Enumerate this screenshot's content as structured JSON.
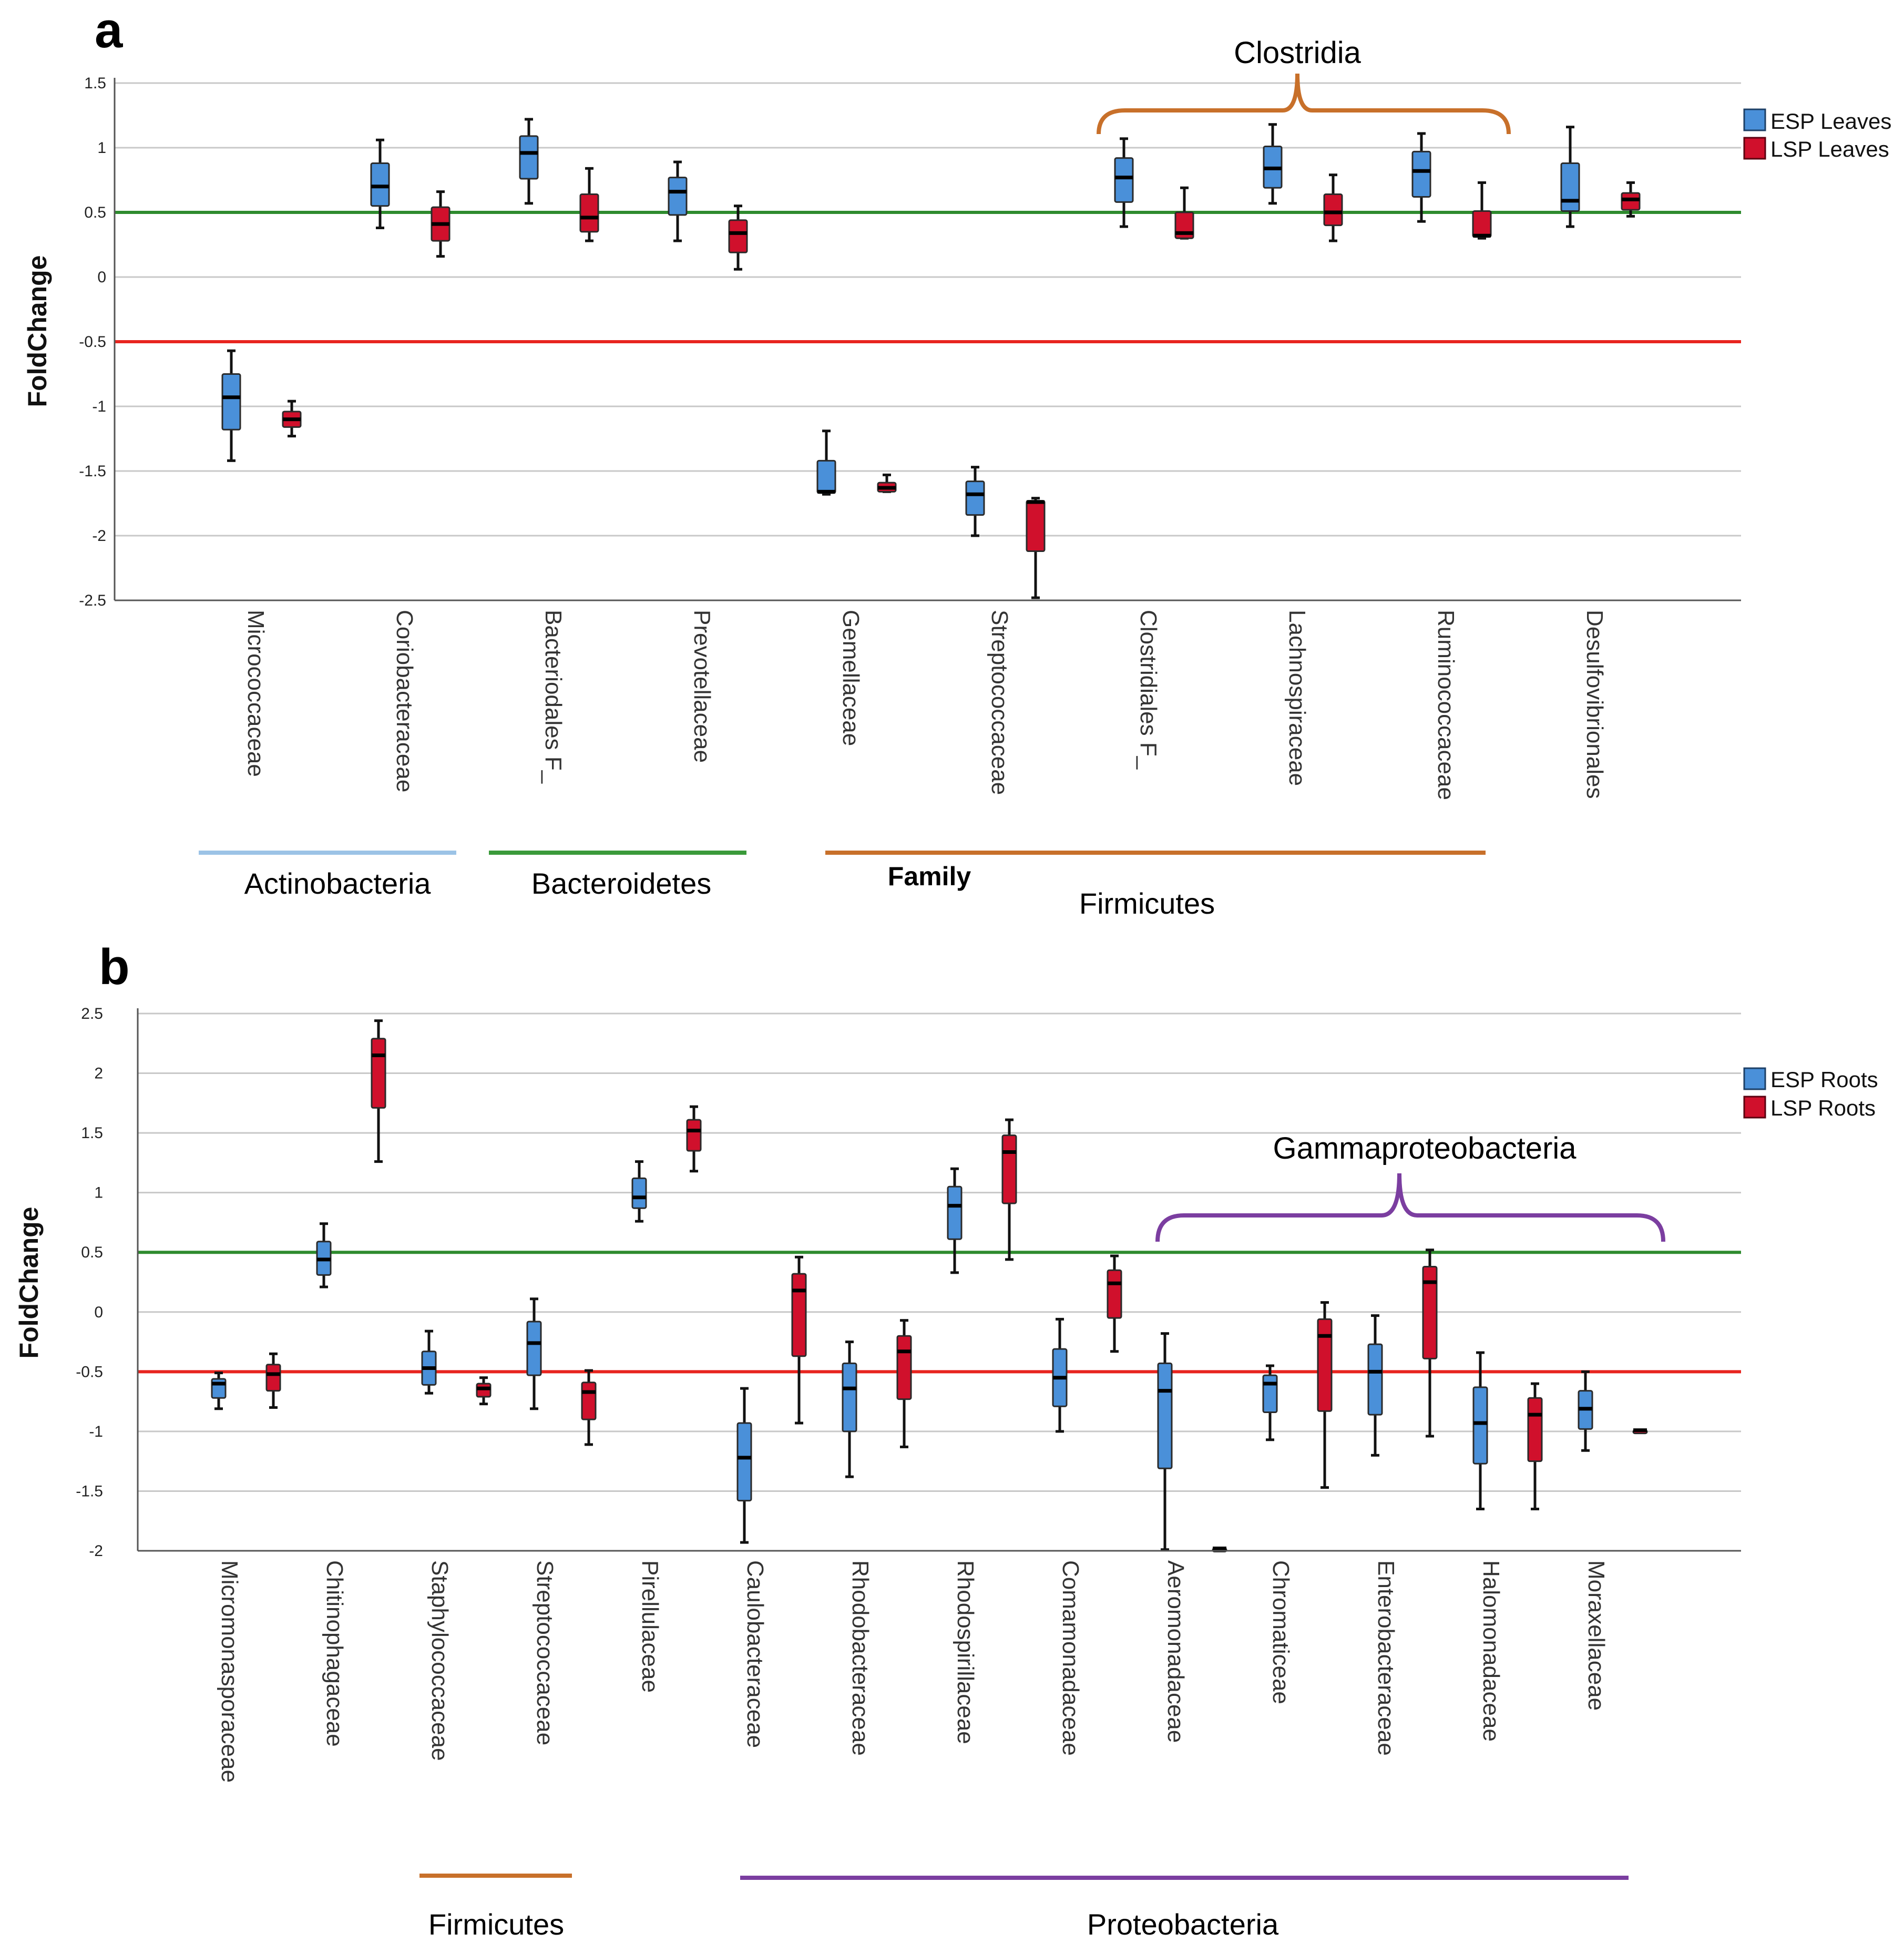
{
  "chart_data": [
    {
      "panel_label": "a",
      "type": "box",
      "ylabel": "FoldChange",
      "ylim": [
        -2.7,
        1.7
      ],
      "yticks": [
        1.5,
        1,
        0.5,
        0,
        -0.5,
        -1,
        -1.5,
        -2,
        -2.5
      ],
      "ytick_labels": [
        "1.5",
        "1",
        "0.5",
        "0",
        "-0.5",
        "-1",
        "-1.5",
        "-2",
        "-2.5"
      ],
      "reference_lines": [
        {
          "y": 0.5,
          "color": "#2e8b2e"
        },
        {
          "y": -0.5,
          "color": "#e8251f"
        }
      ],
      "legend": [
        {
          "label": "ESP Leaves",
          "color": "#4a90d9"
        },
        {
          "label": "LSP Leaves",
          "color": "#d0102c"
        }
      ],
      "categories": [
        "Micrococcaceae",
        "Coriobacteraceae",
        "Bacteriodales F_",
        "Prevotellaceae",
        "Gemellaceae",
        "Streptococcaceae",
        "Clostridiales F_",
        "Lachnospiraceae",
        "Ruminococcaceae",
        "Desulfovibrionales"
      ],
      "series": [
        {
          "name": "ESP Leaves",
          "color": "#4a90d9",
          "boxes": [
            {
              "min": -1.42,
              "q1": -1.18,
              "median": -0.93,
              "q3": -0.75,
              "max": -0.57
            },
            {
              "min": 0.38,
              "q1": 0.55,
              "median": 0.7,
              "q3": 0.88,
              "max": 1.06
            },
            {
              "min": 0.57,
              "q1": 0.76,
              "median": 0.96,
              "q3": 1.09,
              "max": 1.22
            },
            {
              "min": 0.28,
              "q1": 0.48,
              "median": 0.66,
              "q3": 0.77,
              "max": 0.89
            },
            {
              "min": -1.68,
              "q1": -1.67,
              "median": -1.66,
              "q3": -1.42,
              "max": -1.19
            },
            {
              "min": -2.0,
              "q1": -1.84,
              "median": -1.68,
              "q3": -1.58,
              "max": -1.47
            },
            {
              "min": 0.39,
              "q1": 0.58,
              "median": 0.77,
              "q3": 0.92,
              "max": 1.07
            },
            {
              "min": 0.57,
              "q1": 0.69,
              "median": 0.84,
              "q3": 1.01,
              "max": 1.18
            },
            {
              "min": 0.43,
              "q1": 0.62,
              "median": 0.82,
              "q3": 0.97,
              "max": 1.11
            },
            {
              "min": 0.39,
              "q1": 0.51,
              "median": 0.59,
              "q3": 0.88,
              "max": 1.16
            }
          ]
        },
        {
          "name": "LSP Leaves",
          "color": "#d0102c",
          "boxes": [
            {
              "min": -1.23,
              "q1": -1.16,
              "median": -1.1,
              "q3": -1.04,
              "max": -0.96
            },
            {
              "min": 0.16,
              "q1": 0.28,
              "median": 0.41,
              "q3": 0.54,
              "max": 0.66
            },
            {
              "min": 0.28,
              "q1": 0.35,
              "median": 0.46,
              "q3": 0.64,
              "max": 0.84
            },
            {
              "min": 0.06,
              "q1": 0.19,
              "median": 0.34,
              "q3": 0.44,
              "max": 0.55
            },
            {
              "min": -1.66,
              "q1": -1.66,
              "median": -1.63,
              "q3": -1.59,
              "max": -1.53
            },
            {
              "min": -2.48,
              "q1": -2.12,
              "median": -1.74,
              "q3": -1.73,
              "max": -1.71
            },
            {
              "min": 0.3,
              "q1": 0.3,
              "median": 0.34,
              "q3": 0.5,
              "max": 0.69
            },
            {
              "min": 0.28,
              "q1": 0.4,
              "median": 0.5,
              "q3": 0.64,
              "max": 0.79
            },
            {
              "min": 0.3,
              "q1": 0.31,
              "median": 0.32,
              "q3": 0.51,
              "max": 0.73
            },
            {
              "min": 0.47,
              "q1": 0.52,
              "median": 0.6,
              "q3": 0.65,
              "max": 0.73
            }
          ]
        }
      ],
      "brace": {
        "label": "Clostridia"
      },
      "groups": [
        {
          "label": "Actinobacteria",
          "color": "#9cc3e6"
        },
        {
          "label": "Bacteroidetes",
          "color": "#3a9a3a"
        },
        {
          "label": "Firmicutes",
          "color": "#c8702a",
          "sublabel": "Family"
        }
      ]
    },
    {
      "panel_label": "b",
      "type": "box",
      "ylabel": "FoldChange",
      "ylim": [
        -2.0,
        2.5
      ],
      "yticks": [
        2.5,
        2,
        1.5,
        1,
        0.5,
        0,
        -0.5,
        -1,
        -1.5,
        -2
      ],
      "ytick_labels": [
        "2.5",
        "2",
        "1.5",
        "1",
        "0.5",
        "0",
        "-0.5",
        "-1",
        "-1.5",
        "-2"
      ],
      "reference_lines": [
        {
          "y": 0.5,
          "color": "#2e8b2e"
        },
        {
          "y": -0.5,
          "color": "#e8251f"
        }
      ],
      "legend": [
        {
          "label": "ESP Roots",
          "color": "#4a90d9"
        },
        {
          "label": "LSP Roots",
          "color": "#d0102c"
        }
      ],
      "categories": [
        "Micromonasporaceae",
        "Chitinophagaceae",
        "Staphylococcaceae",
        "Streptococcaceae",
        "Pirellulaceae",
        "Caulobacteraceae",
        "Rhodobacteraceae",
        "Rhodospirillaceae",
        "Comamonadaceae",
        "Aeromonadaceae",
        "Chromaticeae",
        "Enterobacteraceae",
        "Halomonadaceae",
        "Moraxellaceae"
      ],
      "series": [
        {
          "name": "ESP Roots",
          "color": "#4a90d9",
          "boxes": [
            {
              "min": -0.81,
              "q1": -0.72,
              "median": -0.6,
              "q3": -0.56,
              "max": -0.51
            },
            {
              "min": 0.21,
              "q1": 0.31,
              "median": 0.44,
              "q3": 0.59,
              "max": 0.74
            },
            {
              "min": -0.68,
              "q1": -0.61,
              "median": -0.47,
              "q3": -0.33,
              "max": -0.16
            },
            {
              "min": -0.81,
              "q1": -0.53,
              "median": -0.26,
              "q3": -0.08,
              "max": 0.11
            },
            {
              "min": 0.76,
              "q1": 0.87,
              "median": 0.96,
              "q3": 1.12,
              "max": 1.26
            },
            {
              "min": -1.93,
              "q1": -1.58,
              "median": -1.22,
              "q3": -0.93,
              "max": -0.64
            },
            {
              "min": -1.38,
              "q1": -1.0,
              "median": -0.64,
              "q3": -0.43,
              "max": -0.25
            },
            {
              "min": 0.33,
              "q1": 0.61,
              "median": 0.89,
              "q3": 1.05,
              "max": 1.2
            },
            {
              "min": -1.0,
              "q1": -0.79,
              "median": -0.55,
              "q3": -0.31,
              "max": -0.06
            },
            {
              "min": -1.99,
              "q1": -1.31,
              "median": -0.66,
              "q3": -0.43,
              "max": -0.18
            },
            {
              "min": -1.07,
              "q1": -0.84,
              "median": -0.6,
              "q3": -0.53,
              "max": -0.45
            },
            {
              "min": -1.2,
              "q1": -0.86,
              "median": -0.5,
              "q3": -0.27,
              "max": -0.03
            },
            {
              "min": -1.65,
              "q1": -1.27,
              "median": -0.93,
              "q3": -0.63,
              "max": -0.34
            },
            {
              "min": -1.16,
              "q1": -0.98,
              "median": -0.81,
              "q3": -0.66,
              "max": -0.5
            }
          ]
        },
        {
          "name": "LSP Roots",
          "color": "#d0102c",
          "boxes": [
            {
              "min": -0.8,
              "q1": -0.66,
              "median": -0.52,
              "q3": -0.44,
              "max": -0.35
            },
            {
              "min": 1.26,
              "q1": 1.71,
              "median": 2.15,
              "q3": 2.29,
              "max": 2.44
            },
            {
              "min": -0.77,
              "q1": -0.71,
              "median": -0.64,
              "q3": -0.6,
              "max": -0.55
            },
            {
              "min": -1.11,
              "q1": -0.9,
              "median": -0.67,
              "q3": -0.59,
              "max": -0.49
            },
            {
              "min": 1.18,
              "q1": 1.35,
              "median": 1.52,
              "q3": 1.61,
              "max": 1.72
            },
            {
              "min": -0.93,
              "q1": -0.37,
              "median": 0.18,
              "q3": 0.32,
              "max": 0.46
            },
            {
              "min": -1.13,
              "q1": -0.73,
              "median": -0.33,
              "q3": -0.2,
              "max": -0.07
            },
            {
              "min": 0.44,
              "q1": 0.91,
              "median": 1.34,
              "q3": 1.48,
              "max": 1.61
            },
            {
              "min": -0.33,
              "q1": -0.05,
              "median": 0.24,
              "q3": 0.35,
              "max": 0.47
            },
            {
              "min": -1.98,
              "q1": -1.98,
              "median": -1.98,
              "q3": -1.98,
              "max": -1.98
            },
            {
              "min": -1.47,
              "q1": -0.83,
              "median": -0.2,
              "q3": -0.06,
              "max": 0.08
            },
            {
              "min": -1.04,
              "q1": -0.39,
              "median": 0.25,
              "q3": 0.38,
              "max": 0.52
            },
            {
              "min": -1.65,
              "q1": -1.25,
              "median": -0.86,
              "q3": -0.72,
              "max": -0.6
            },
            {
              "min": -0.99,
              "q1": -0.99,
              "median": -0.99,
              "q3": -0.99,
              "max": -0.99
            }
          ]
        }
      ],
      "brace": {
        "label": "Gammaproteobacteria"
      },
      "groups": [
        {
          "label": "Firmicutes",
          "color": "#c8702a"
        },
        {
          "label": "Proteobacteria",
          "color": "#7b3ea0"
        }
      ]
    }
  ]
}
